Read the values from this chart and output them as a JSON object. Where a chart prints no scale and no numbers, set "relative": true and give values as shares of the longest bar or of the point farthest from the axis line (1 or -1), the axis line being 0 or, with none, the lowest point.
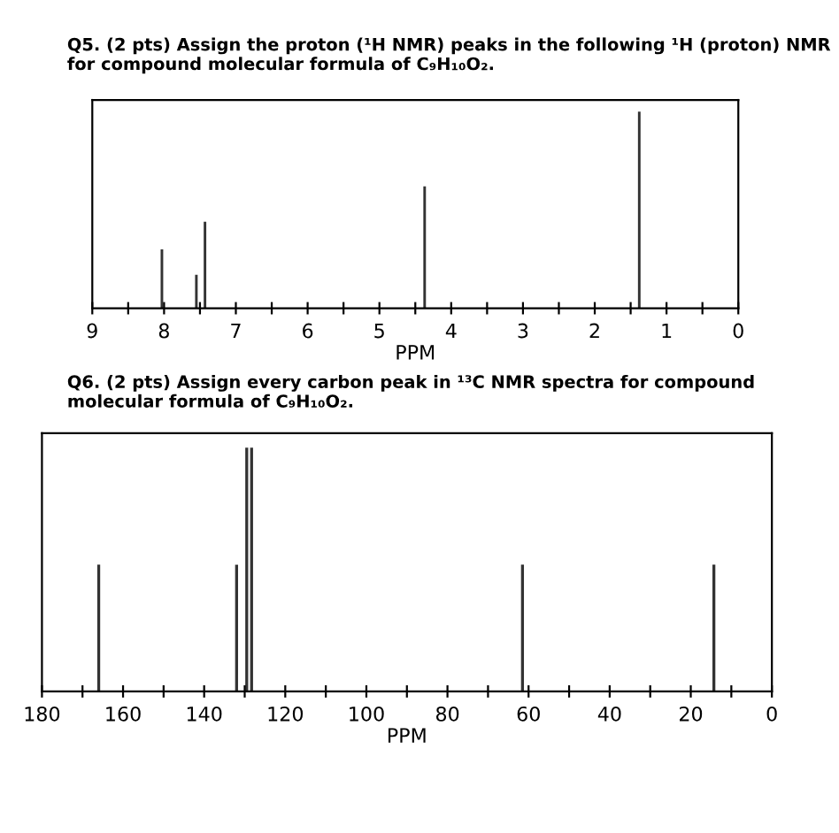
{
  "chart_data": [
    {
      "type": "bar",
      "title": "Q5. (2 pts) Assign the proton (¹H NMR) peaks in the following ¹H (proton) NMR for compound molecular formula of C₉H₁₀O₂.",
      "xlabel": "PPM",
      "relative": true,
      "tick_labels": "x",
      "x": [
        8.03,
        7.55,
        7.43,
        4.37,
        1.38
      ],
      "values": [
        0.3,
        0.17,
        0.44,
        0.62,
        1
      ],
      "color": "#333333",
      "xlim": [
        9,
        0
      ],
      "xticks": [
        9,
        {
          "value": 8.5,
          "label": null
        },
        8,
        {
          "value": 7.5,
          "label": null
        },
        7,
        {
          "value": 6.5,
          "label": null
        },
        6,
        {
          "value": 5.5,
          "label": null
        },
        5,
        {
          "value": 4.5,
          "label": null
        },
        4,
        {
          "value": 3.5,
          "label": null
        },
        3,
        {
          "value": 2.5,
          "label": null
        },
        2,
        {
          "value": 1.5,
          "label": null
        },
        1,
        {
          "value": 0.5,
          "label": null
        },
        0
      ]
    },
    {
      "type": "bar",
      "title": "Q6. (2 pts) Assign every carbon peak in ¹³C NMR spectra for compound molecular formula of C₉H₁₀O₂.",
      "xlabel": "PPM",
      "relative": true,
      "tick_labels": "x",
      "x": [
        166,
        132,
        129.5,
        128.3,
        61.5,
        14.3
      ],
      "values": [
        0.52,
        0.52,
        1,
        1,
        0.52,
        0.52
      ],
      "color": "#333333",
      "xlim": [
        180,
        0
      ],
      "xticks": [
        180,
        {
          "value": 170,
          "label": null
        },
        160,
        {
          "value": 150,
          "label": null
        },
        140,
        {
          "value": 130,
          "label": null
        },
        120,
        {
          "value": 110,
          "label": null
        },
        100,
        {
          "value": 90,
          "label": null
        },
        80,
        {
          "value": 70,
          "label": null
        },
        60,
        {
          "value": 50,
          "label": null
        },
        40,
        {
          "value": 30,
          "label": null
        },
        20,
        {
          "value": 10,
          "label": null
        },
        0
      ]
    }
  ]
}
